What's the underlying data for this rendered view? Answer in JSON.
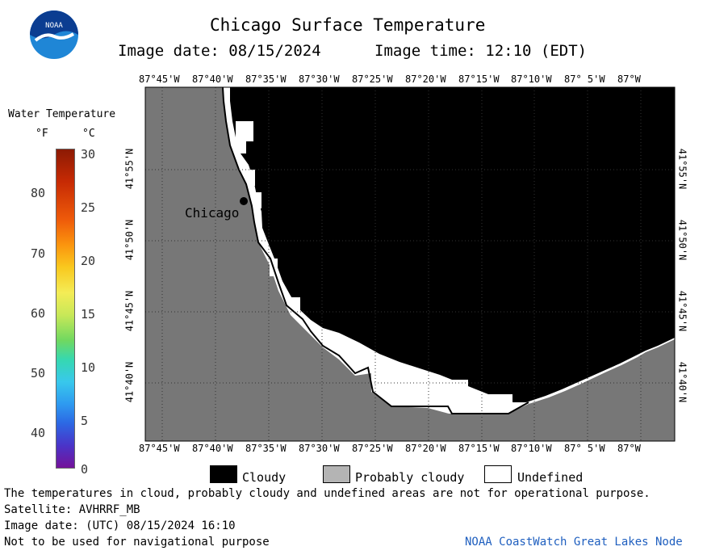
{
  "header": {
    "logo_text": "NOAA",
    "title": "Chicago Surface Temperature",
    "image_date_label": "Image date: 08/15/2024",
    "image_time_label": "Image time: 12:10 (EDT)"
  },
  "colors": {
    "land": "#777777",
    "cloudy": "#000000",
    "probably_cloudy": "#b4b4b4",
    "undefined": "#ffffff",
    "logo_blue": "#1f86d6",
    "logo_dark": "#0b3d91",
    "credit_blue": "#1f5fbf"
  },
  "scale": {
    "title": "Water Temperature",
    "unit_f": "°F",
    "unit_c": "°C",
    "f_ticks": [
      "80",
      "70",
      "60",
      "50",
      "40"
    ],
    "c_ticks": [
      "30",
      "25",
      "20",
      "15",
      "10",
      "5",
      "0"
    ]
  },
  "map": {
    "top_ticks": [
      "87°45'W",
      "87°40'W",
      "87°35'W",
      "87°30'W",
      "87°25'W",
      "87°20'W",
      "87°15'W",
      "87°10'W",
      "87° 5'W",
      "87°W"
    ],
    "bottom_ticks": [
      "87°45'W",
      "87°40'W",
      "87°35'W",
      "87°30'W",
      "87°25'W",
      "87°20'W",
      "87°15'W",
      "87°10'W",
      "87° 5'W",
      "87°W"
    ],
    "left_ticks": [
      "41°55'N",
      "41°50'N",
      "41°45'N",
      "41°40'N"
    ],
    "right_ticks": [
      "41°55'N",
      "41°50'N",
      "41°45'N",
      "41°40'N"
    ],
    "city_label": "Chicago"
  },
  "legend": {
    "cloudy": "Cloudy",
    "probably_cloudy": "Probably cloudy",
    "undefined": "Undefined"
  },
  "footer": {
    "disclaimer": "The temperatures in cloud, probably cloudy and undefined areas are not for operational purpose.",
    "satellite": "Satellite: AVHRRF_MB",
    "utc_date": "Image date: (UTC) 08/15/2024  16:10",
    "nav_warning": "Not to be used for navigational purpose",
    "credit": "NOAA CoastWatch Great Lakes Node"
  }
}
